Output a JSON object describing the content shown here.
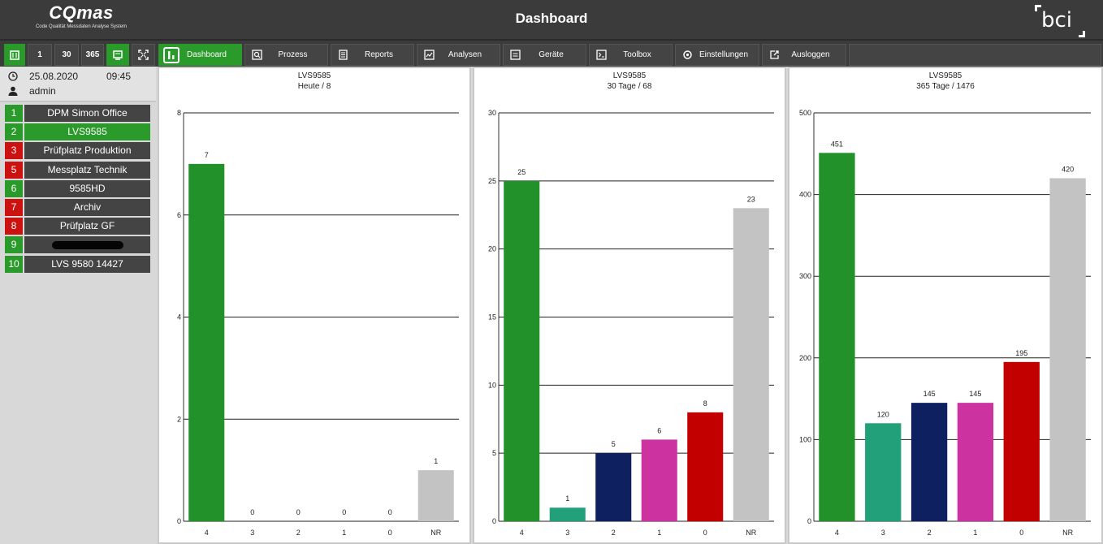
{
  "header": {
    "logo_main": "CQmas",
    "logo_sub": "Code Qualität Messdaten Analyse System",
    "title": "Dashboard",
    "brand": "bci"
  },
  "toolbar": {
    "quick": [
      {
        "label": "",
        "icon": "panel-icon",
        "green": true
      },
      {
        "label": "1",
        "green": false
      },
      {
        "label": "30",
        "green": false
      },
      {
        "label": "365",
        "green": false
      },
      {
        "label": "",
        "icon": "monitor-icon",
        "green": true
      },
      {
        "label": "",
        "icon": "fullscreen-icon",
        "green": false
      }
    ],
    "nav": [
      {
        "label": "Dashboard",
        "icon": "dashboard-icon",
        "active": true
      },
      {
        "label": "Prozess",
        "icon": "process-icon",
        "active": false
      },
      {
        "label": "Reports",
        "icon": "report-icon",
        "active": false
      },
      {
        "label": "Analysen",
        "icon": "analysis-icon",
        "active": false
      },
      {
        "label": "Geräte",
        "icon": "devices-icon",
        "active": false
      },
      {
        "label": "Toolbox",
        "icon": "toolbox-icon",
        "active": false
      },
      {
        "label": "Einstellungen",
        "icon": "gear-icon",
        "active": false
      },
      {
        "label": "Ausloggen",
        "icon": "logout-icon",
        "active": false
      }
    ]
  },
  "info": {
    "date": "25.08.2020",
    "time": "09:45",
    "user": "admin"
  },
  "stations": [
    {
      "num": "1",
      "name": "DPM Simon Office",
      "status_color": "#2a9b2a",
      "active": false
    },
    {
      "num": "2",
      "name": "LVS9585",
      "status_color": "#2a9b2a",
      "active": true
    },
    {
      "num": "3",
      "name": "Prüfplatz Produktion",
      "status_color": "#cc1111",
      "active": false
    },
    {
      "num": "5",
      "name": "Messplatz Technik",
      "status_color": "#cc1111",
      "active": false
    },
    {
      "num": "6",
      "name": "9585HD",
      "status_color": "#2a9b2a",
      "active": false
    },
    {
      "num": "7",
      "name": "Archiv",
      "status_color": "#cc1111",
      "active": false
    },
    {
      "num": "8",
      "name": "Prüfplatz GF",
      "status_color": "#cc1111",
      "active": false
    },
    {
      "num": "9",
      "name": "",
      "status_color": "#2a9b2a",
      "active": false,
      "redacted": true
    },
    {
      "num": "10",
      "name": "LVS 9580 14427",
      "status_color": "#2a9b2a",
      "active": false
    }
  ],
  "chart_data": [
    {
      "type": "bar",
      "title": "LVS9585",
      "subtitle": "Heute / 8",
      "categories": [
        "4",
        "3",
        "2",
        "1",
        "0",
        "NR"
      ],
      "values": [
        7,
        0,
        0,
        0,
        0,
        1
      ],
      "ylim": [
        0,
        8
      ],
      "yticks": [
        0,
        2,
        4,
        6,
        8
      ],
      "colors": [
        "#23912a",
        "#22a07a",
        "#0e2060",
        "#cc33a0",
        "#c30000",
        "#c3c3c3"
      ]
    },
    {
      "type": "bar",
      "title": "LVS9585",
      "subtitle": "30 Tage / 68",
      "categories": [
        "4",
        "3",
        "2",
        "1",
        "0",
        "NR"
      ],
      "values": [
        25,
        1,
        5,
        6,
        8,
        23
      ],
      "ylim": [
        0,
        30
      ],
      "yticks": [
        0,
        5,
        10,
        15,
        20,
        25,
        30
      ],
      "colors": [
        "#23912a",
        "#22a07a",
        "#0e2060",
        "#cc33a0",
        "#c30000",
        "#c3c3c3"
      ]
    },
    {
      "type": "bar",
      "title": "LVS9585",
      "subtitle": "365 Tage / 1476",
      "categories": [
        "4",
        "3",
        "2",
        "1",
        "0",
        "NR"
      ],
      "values": [
        451,
        120,
        145,
        145,
        195,
        420
      ],
      "ylim": [
        0,
        500
      ],
      "yticks": [
        0,
        100,
        200,
        300,
        400,
        500
      ],
      "colors": [
        "#23912a",
        "#22a07a",
        "#0e2060",
        "#cc33a0",
        "#c30000",
        "#c3c3c3"
      ]
    }
  ]
}
